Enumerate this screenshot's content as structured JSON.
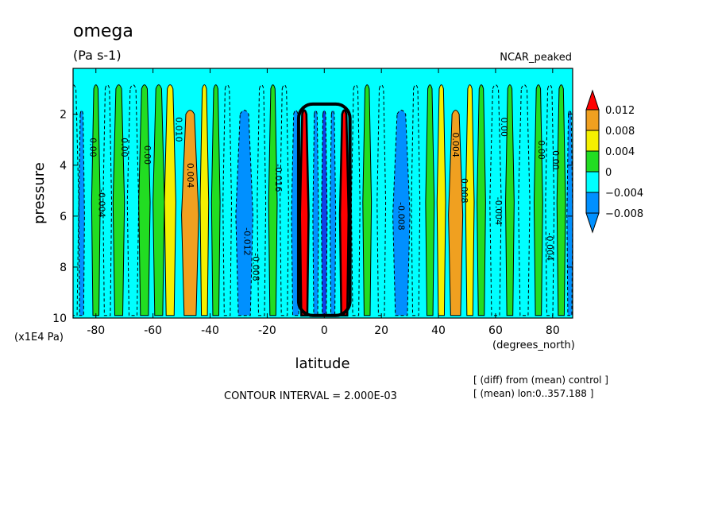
{
  "chart_data": {
    "type": "heatmap",
    "title": "omega",
    "units": "(Pa s-1)",
    "dataset": "NCAR_peaked",
    "xlabel": "latitude",
    "x_units": "(degrees_north)",
    "ylabel": "pressure",
    "y_units": "(x1E4 Pa)",
    "x_ticks": [
      "-80",
      "-60",
      "-40",
      "-20",
      "0",
      "20",
      "40",
      "60",
      "80"
    ],
    "y_ticks": [
      "2",
      "4",
      "6",
      "8",
      "10"
    ],
    "xlim": [
      -88,
      87
    ],
    "ylim": [
      10,
      0.2
    ],
    "contour_interval_text": "CONTOUR INTERVAL = 2.000E-03",
    "notes": [
      "[ (diff) from (mean) control ]",
      "[ (mean) lon:0..357.188 ]"
    ],
    "colorbar": {
      "labels": [
        "0.012",
        "0.008",
        "0.004",
        "0",
        "−0.004",
        "−0.008"
      ],
      "colors": [
        "#dd0000",
        "#f0a020",
        "#f5f000",
        "#22dd22",
        "#00ffff",
        "#0090ff",
        "#1040e8",
        "#ff0000"
      ]
    },
    "bands": [
      {
        "lat": -88,
        "w": 4,
        "v": -0.004
      },
      {
        "lat": -85,
        "w": 2,
        "v": -0.008
      },
      {
        "lat": -80,
        "w": 3,
        "v": 0.0
      },
      {
        "lat": -76,
        "w": 3,
        "v": -0.004
      },
      {
        "lat": -72,
        "w": 4,
        "v": 0.0
      },
      {
        "lat": -67,
        "w": 4,
        "v": -0.004
      },
      {
        "lat": -63,
        "w": 4,
        "v": 0.0
      },
      {
        "lat": -58,
        "w": 4,
        "v": 0.002
      },
      {
        "lat": -54,
        "w": 4,
        "v": 0.004
      },
      {
        "lat": -47,
        "w": 6,
        "v": 0.008
      },
      {
        "lat": -42,
        "w": 3,
        "v": 0.004
      },
      {
        "lat": -38,
        "w": 3,
        "v": 0.0
      },
      {
        "lat": -34,
        "w": 3,
        "v": -0.004
      },
      {
        "lat": -28,
        "w": 6,
        "v": -0.008
      },
      {
        "lat": -22,
        "w": 3,
        "v": -0.004
      },
      {
        "lat": -18,
        "w": 3,
        "v": 0.0
      },
      {
        "lat": -14,
        "w": 3,
        "v": -0.004
      },
      {
        "lat": -10,
        "w": 3,
        "v": -0.008
      },
      {
        "lat": -7,
        "w": 3,
        "v": 0.012
      },
      {
        "lat": -3,
        "w": 2,
        "v": -0.008
      },
      {
        "lat": 0,
        "w": 2,
        "v": -0.01
      },
      {
        "lat": 3,
        "w": 2,
        "v": -0.008
      },
      {
        "lat": 7,
        "w": 3,
        "v": 0.012
      },
      {
        "lat": 11,
        "w": 3,
        "v": -0.004
      },
      {
        "lat": 15,
        "w": 3,
        "v": 0.0
      },
      {
        "lat": 20,
        "w": 3,
        "v": -0.004
      },
      {
        "lat": 27,
        "w": 6,
        "v": -0.008
      },
      {
        "lat": 32,
        "w": 3,
        "v": -0.004
      },
      {
        "lat": 37,
        "w": 3,
        "v": 0.0
      },
      {
        "lat": 41,
        "w": 3,
        "v": 0.004
      },
      {
        "lat": 46,
        "w": 5,
        "v": 0.008
      },
      {
        "lat": 51,
        "w": 3,
        "v": 0.004
      },
      {
        "lat": 55,
        "w": 3,
        "v": 0.0
      },
      {
        "lat": 60,
        "w": 4,
        "v": -0.004
      },
      {
        "lat": 65,
        "w": 3,
        "v": 0.0
      },
      {
        "lat": 70,
        "w": 4,
        "v": -0.004
      },
      {
        "lat": 75,
        "w": 3,
        "v": 0.0
      },
      {
        "lat": 79,
        "w": 3,
        "v": -0.004
      },
      {
        "lat": 83,
        "w": 3,
        "v": 0.0
      },
      {
        "lat": 86,
        "w": 2,
        "v": -0.008
      }
    ],
    "contour_labels": [
      {
        "text": "0.00",
        "lat": -82,
        "p": 3.3
      },
      {
        "text": "-0.004",
        "lat": -79,
        "p": 5.5
      },
      {
        "text": "0.00",
        "lat": -71,
        "p": 3.3
      },
      {
        "text": "0.00",
        "lat": -63,
        "p": 3.6
      },
      {
        "text": "0.010",
        "lat": -52,
        "p": 2.6
      },
      {
        "text": "0.004",
        "lat": -48,
        "p": 4.4
      },
      {
        "text": "-0.012",
        "lat": -28,
        "p": 7.0
      },
      {
        "text": "-0.008",
        "lat": -25,
        "p": 8.0
      },
      {
        "text": "-0.016",
        "lat": -17,
        "p": 4.5
      },
      {
        "text": "-0.008",
        "lat": 26,
        "p": 6.0
      },
      {
        "text": "0.004",
        "lat": 45,
        "p": 3.2
      },
      {
        "text": "0.008",
        "lat": 48,
        "p": 5.0
      },
      {
        "text": "-0.004",
        "lat": 60,
        "p": 5.8
      },
      {
        "text": "0.00",
        "lat": 62,
        "p": 2.5
      },
      {
        "text": "0.00",
        "lat": 75,
        "p": 3.4
      },
      {
        "text": "0.00",
        "lat": 80,
        "p": 3.8
      },
      {
        "text": "-0.004",
        "lat": 78,
        "p": 7.2
      }
    ]
  }
}
